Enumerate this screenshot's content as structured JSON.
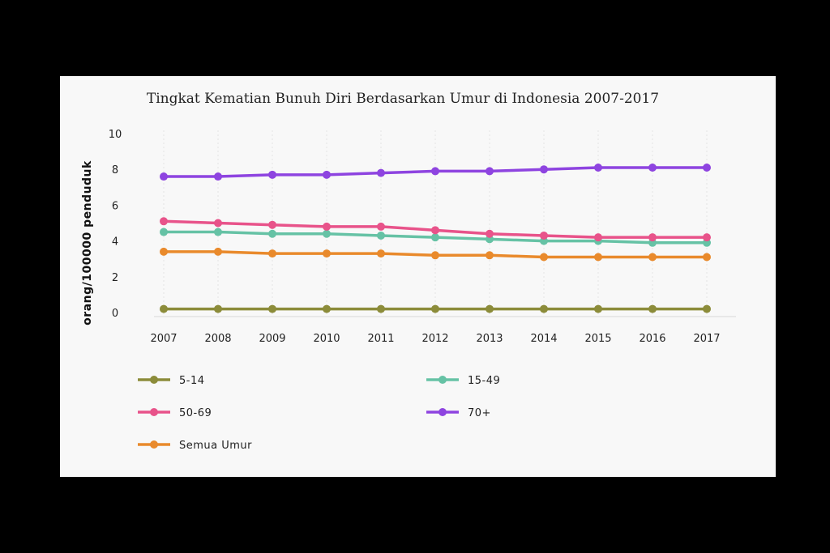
{
  "chart_data": {
    "type": "line",
    "title": "Tingkat Kematian Bunuh Diri Berdasarkan Umur di Indonesia 2007-2017",
    "xlabel": "",
    "ylabel": "orang/100000 penduduk",
    "x": [
      "2007",
      "2008",
      "2009",
      "2010",
      "2011",
      "2012",
      "2013",
      "2014",
      "2015",
      "2016",
      "2017"
    ],
    "ylim": [
      0,
      10
    ],
    "yticks": [
      0,
      2,
      4,
      6,
      8,
      10
    ],
    "grid": "vertical dotted",
    "legend_position": "bottom",
    "series": [
      {
        "name": "5-14",
        "color": "#8c8c3a",
        "values": [
          0.2,
          0.2,
          0.2,
          0.2,
          0.2,
          0.2,
          0.2,
          0.2,
          0.2,
          0.2,
          0.2
        ]
      },
      {
        "name": "15-49",
        "color": "#66c2a5",
        "values": [
          4.5,
          4.5,
          4.4,
          4.4,
          4.3,
          4.2,
          4.1,
          4.0,
          4.0,
          3.9,
          3.9
        ]
      },
      {
        "name": "50-69",
        "color": "#e8538a",
        "values": [
          5.1,
          5.0,
          4.9,
          4.8,
          4.8,
          4.6,
          4.4,
          4.3,
          4.2,
          4.2,
          4.2
        ]
      },
      {
        "name": "70+",
        "color": "#8e44e0",
        "values": [
          7.6,
          7.6,
          7.7,
          7.7,
          7.8,
          7.9,
          7.9,
          8.0,
          8.1,
          8.1,
          8.1
        ]
      },
      {
        "name": "Semua Umur",
        "color": "#e98a2c",
        "values": [
          3.4,
          3.4,
          3.3,
          3.3,
          3.3,
          3.2,
          3.2,
          3.1,
          3.1,
          3.1,
          3.1
        ]
      }
    ]
  }
}
